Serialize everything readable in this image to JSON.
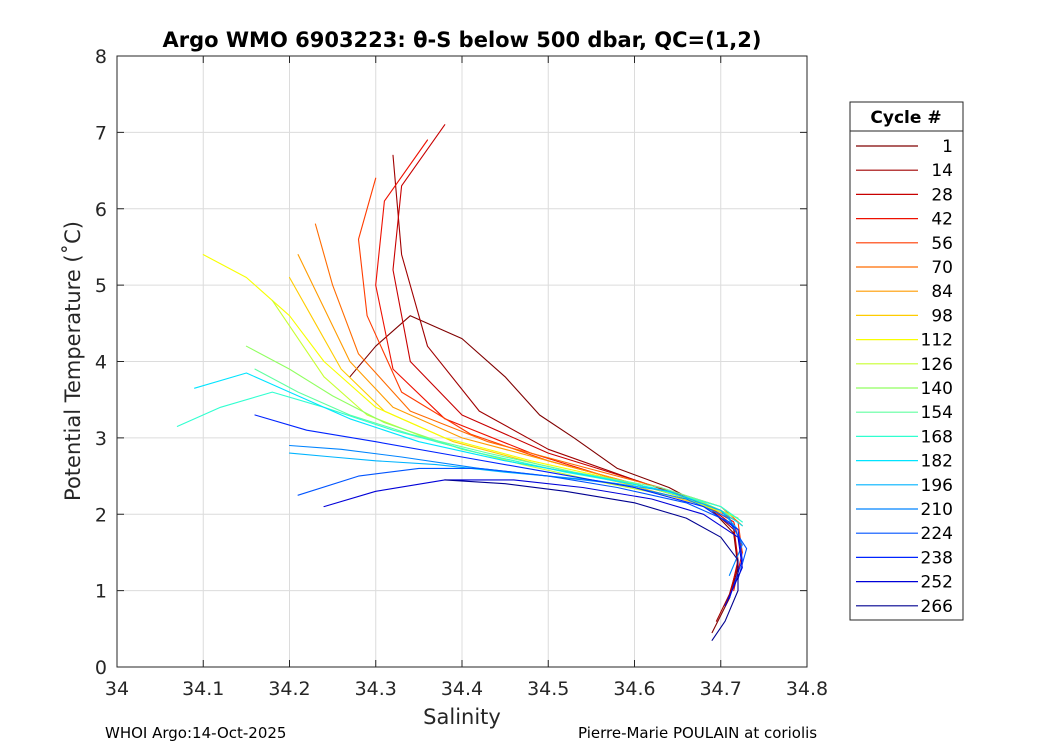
{
  "chart_data": {
    "type": "line",
    "title": "Argo WMO 6903223: θ-S below 500 dbar,  QC=(1,2)",
    "xlabel": "Salinity",
    "ylabel": "Potential Temperature (˚C)",
    "xlim": [
      34.0,
      34.8
    ],
    "ylim": [
      0,
      8
    ],
    "xticks": [
      34,
      34.1,
      34.2,
      34.3,
      34.4,
      34.5,
      34.6,
      34.7,
      34.8
    ],
    "xtick_labels": [
      "34",
      "34.1",
      "34.2",
      "34.3",
      "34.4",
      "34.5",
      "34.6",
      "34.7",
      "34.8"
    ],
    "yticks": [
      0,
      1,
      2,
      3,
      4,
      5,
      6,
      7,
      8
    ],
    "ytick_labels": [
      "0",
      "1",
      "2",
      "3",
      "4",
      "5",
      "6",
      "7",
      "8"
    ],
    "grid": true,
    "legend": {
      "title": "Cycle #",
      "placement": "outside-right",
      "entries": [
        "1",
        "14",
        "28",
        "42",
        "56",
        "70",
        "84",
        "98",
        "112",
        "126",
        "140",
        "154",
        "168",
        "182",
        "196",
        "210",
        "224",
        "238",
        "252",
        "266"
      ],
      "colors": [
        "#800000",
        "#a00000",
        "#c80000",
        "#ee1000",
        "#ff3c00",
        "#ff6c00",
        "#ff9c00",
        "#ffcc00",
        "#f8ff00",
        "#c8ff30",
        "#90ff60",
        "#60ffa0",
        "#30ffd0",
        "#00e4ff",
        "#00b4ff",
        "#0084ff",
        "#0054ff",
        "#0024ff",
        "#0000d8",
        "#000090"
      ]
    },
    "series": [
      {
        "name": "1",
        "color": "#800000",
        "x": [
          34.27,
          34.3,
          34.34,
          34.4,
          34.45,
          34.49,
          34.53,
          34.58,
          34.64,
          34.69,
          34.715,
          34.72,
          34.71,
          34.69
        ],
        "y": [
          3.8,
          4.2,
          4.6,
          4.3,
          3.8,
          3.3,
          3.0,
          2.6,
          2.35,
          2.05,
          1.75,
          1.3,
          0.9,
          0.45
        ]
      },
      {
        "name": "14",
        "color": "#a00000",
        "x": [
          34.32,
          34.33,
          34.36,
          34.42,
          34.5,
          34.6,
          34.68,
          34.715,
          34.72,
          34.71,
          34.695
        ],
        "y": [
          6.7,
          5.4,
          4.2,
          3.35,
          2.85,
          2.45,
          2.15,
          1.8,
          1.35,
          0.95,
          0.6
        ]
      },
      {
        "name": "28",
        "color": "#c80000",
        "x": [
          34.38,
          34.33,
          34.32,
          34.34,
          34.4,
          34.5,
          34.6,
          34.68,
          34.715,
          34.72,
          34.71
        ],
        "y": [
          7.1,
          6.3,
          5.2,
          4.0,
          3.3,
          2.8,
          2.45,
          2.15,
          1.85,
          1.4,
          0.9
        ]
      },
      {
        "name": "42",
        "color": "#ee1000",
        "x": [
          34.36,
          34.31,
          34.3,
          34.32,
          34.38,
          34.48,
          34.58,
          34.67,
          34.715,
          34.725,
          34.715
        ],
        "y": [
          6.9,
          6.1,
          5.0,
          3.9,
          3.25,
          2.8,
          2.45,
          2.2,
          1.9,
          1.5,
          1.0
        ]
      },
      {
        "name": "56",
        "color": "#ff3c00",
        "x": [
          34.3,
          34.28,
          34.29,
          34.33,
          34.41,
          34.5,
          34.6,
          34.68,
          34.72,
          34.725
        ],
        "y": [
          6.4,
          5.6,
          4.6,
          3.6,
          3.05,
          2.7,
          2.4,
          2.15,
          1.9,
          1.5
        ]
      },
      {
        "name": "70",
        "color": "#ff6c00",
        "x": [
          34.23,
          34.25,
          34.28,
          34.34,
          34.43,
          34.53,
          34.63,
          34.7,
          34.725
        ],
        "y": [
          5.8,
          5.0,
          4.1,
          3.35,
          2.95,
          2.65,
          2.35,
          2.1,
          1.85
        ]
      },
      {
        "name": "84",
        "color": "#ff9c00",
        "x": [
          34.21,
          34.24,
          34.27,
          34.32,
          34.4,
          34.5,
          34.6,
          34.68,
          34.72
        ],
        "y": [
          5.4,
          4.7,
          4.0,
          3.4,
          3.0,
          2.7,
          2.4,
          2.15,
          1.95
        ]
      },
      {
        "name": "98",
        "color": "#ffcc00",
        "x": [
          34.2,
          34.23,
          34.26,
          34.31,
          34.39,
          34.49,
          34.59,
          34.67,
          34.72
        ],
        "y": [
          5.1,
          4.5,
          3.9,
          3.35,
          2.95,
          2.65,
          2.4,
          2.15,
          1.95
        ]
      },
      {
        "name": "112",
        "color": "#f8ff00",
        "x": [
          34.1,
          34.15,
          34.2,
          34.24,
          34.3,
          34.38,
          34.48,
          34.58,
          34.67,
          34.72
        ],
        "y": [
          5.4,
          5.1,
          4.6,
          4.0,
          3.4,
          3.0,
          2.7,
          2.45,
          2.2,
          1.95
        ]
      },
      {
        "name": "126",
        "color": "#c8ff30",
        "x": [
          34.18,
          34.21,
          34.24,
          34.29,
          34.37,
          34.47,
          34.57,
          34.66,
          34.72
        ],
        "y": [
          4.8,
          4.3,
          3.8,
          3.3,
          2.95,
          2.65,
          2.4,
          2.2,
          1.95
        ]
      },
      {
        "name": "140",
        "color": "#90ff60",
        "x": [
          34.15,
          34.2,
          34.25,
          34.31,
          34.4,
          34.5,
          34.6,
          34.68,
          34.72
        ],
        "y": [
          4.2,
          3.9,
          3.55,
          3.2,
          2.85,
          2.6,
          2.4,
          2.15,
          1.95
        ]
      },
      {
        "name": "154",
        "color": "#60ffa0",
        "x": [
          34.16,
          34.21,
          34.27,
          34.34,
          34.43,
          34.53,
          34.63,
          34.7,
          34.725
        ],
        "y": [
          3.9,
          3.6,
          3.3,
          3.05,
          2.8,
          2.55,
          2.35,
          2.1,
          1.9
        ]
      },
      {
        "name": "168",
        "color": "#30ffd0",
        "x": [
          34.07,
          34.12,
          34.18,
          34.24,
          34.32,
          34.42,
          34.52,
          34.62,
          34.7,
          34.725
        ],
        "y": [
          3.15,
          3.4,
          3.6,
          3.4,
          3.1,
          2.8,
          2.55,
          2.35,
          2.1,
          1.9
        ]
      },
      {
        "name": "182",
        "color": "#00e4ff",
        "x": [
          34.09,
          34.15,
          34.2,
          34.27,
          34.35,
          34.45,
          34.55,
          34.64,
          34.7,
          34.725
        ],
        "y": [
          3.65,
          3.85,
          3.6,
          3.25,
          2.95,
          2.7,
          2.5,
          2.3,
          2.05,
          1.85
        ]
      },
      {
        "name": "196",
        "color": "#00b4ff",
        "x": [
          34.2,
          34.25,
          34.3,
          34.37,
          34.45,
          34.55,
          34.64,
          34.7,
          34.72
        ],
        "y": [
          2.8,
          2.75,
          2.7,
          2.65,
          2.55,
          2.45,
          2.3,
          2.05,
          1.8
        ]
      },
      {
        "name": "210",
        "color": "#0084ff",
        "x": [
          34.2,
          34.26,
          34.33,
          34.42,
          34.5,
          34.58,
          34.66,
          34.71,
          34.725,
          34.71
        ],
        "y": [
          2.9,
          2.85,
          2.75,
          2.6,
          2.5,
          2.4,
          2.2,
          1.95,
          1.6,
          1.2
        ]
      },
      {
        "name": "224",
        "color": "#0054ff",
        "x": [
          34.21,
          34.28,
          34.35,
          34.42,
          34.5,
          34.58,
          34.66,
          34.71,
          34.73,
          34.72
        ],
        "y": [
          2.25,
          2.5,
          2.6,
          2.6,
          2.5,
          2.35,
          2.15,
          1.9,
          1.55,
          1.15
        ]
      },
      {
        "name": "238",
        "color": "#0024ff",
        "x": [
          34.16,
          34.22,
          34.3,
          34.4,
          34.5,
          34.6,
          34.68,
          34.72,
          34.725,
          34.71
        ],
        "y": [
          3.3,
          3.1,
          2.95,
          2.75,
          2.55,
          2.35,
          2.1,
          1.8,
          1.4,
          0.9
        ]
      },
      {
        "name": "252",
        "color": "#0000d8",
        "x": [
          34.24,
          34.3,
          34.38,
          34.46,
          34.54,
          34.62,
          34.68,
          34.72,
          34.725,
          34.705
        ],
        "y": [
          2.1,
          2.3,
          2.45,
          2.45,
          2.35,
          2.2,
          2.0,
          1.7,
          1.3,
          0.8
        ]
      },
      {
        "name": "266",
        "color": "#000090",
        "x": [
          34.38,
          34.45,
          34.52,
          34.6,
          34.66,
          34.7,
          34.72,
          34.72,
          34.705,
          34.69
        ],
        "y": [
          2.45,
          2.4,
          2.3,
          2.15,
          1.95,
          1.7,
          1.4,
          1.0,
          0.6,
          0.35
        ]
      }
    ]
  },
  "footer": {
    "left": "WHOI Argo:14-Oct-2025",
    "right": "Pierre-Marie POULAIN at coriolis"
  }
}
